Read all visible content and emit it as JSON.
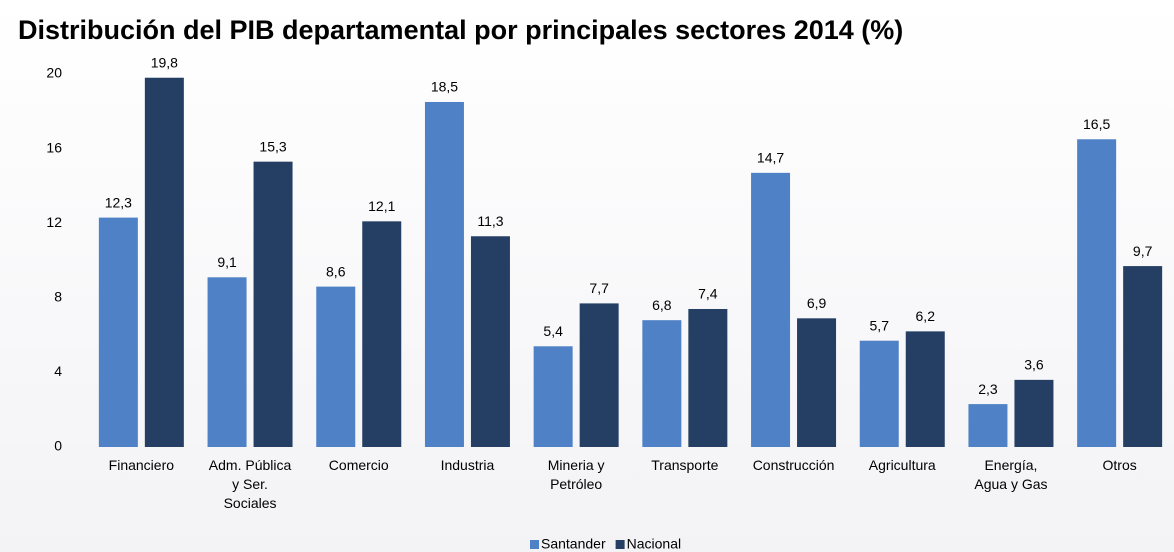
{
  "chart_data": {
    "type": "bar",
    "title": "Distribución del PIB departamental por principales sectores 2014 (%)",
    "categories": [
      "Financiero",
      "Adm. Pública y Ser. Sociales",
      "Comercio",
      "Industria",
      "Mineria y Petróleo",
      "Transporte",
      "Construcción",
      "Agricultura",
      "Energía, Agua y Gas",
      "Otros"
    ],
    "series": [
      {
        "name": "Santander",
        "color": "#4f81c7",
        "values": [
          12.3,
          9.1,
          8.6,
          18.5,
          5.4,
          6.8,
          14.7,
          5.7,
          2.3,
          16.5
        ],
        "value_labels": [
          "12,3",
          "9,1",
          "8,6",
          "18,5",
          "5,4",
          "6,8",
          "14,7",
          "5,7",
          "2,3",
          "16,5"
        ]
      },
      {
        "name": "Nacional",
        "color": "#243f63",
        "values": [
          19.8,
          15.3,
          12.1,
          11.3,
          7.7,
          7.4,
          6.9,
          6.2,
          3.6,
          9.7
        ],
        "value_labels": [
          "19,8",
          "15,3",
          "12,1",
          "11,3",
          "7,7",
          "7,4",
          "6,9",
          "6,2",
          "3,6",
          "9,7"
        ]
      }
    ],
    "ylim": [
      0,
      20
    ],
    "yticks": [
      0,
      4,
      8,
      12,
      16,
      20
    ],
    "grid": false,
    "legend": "bottom"
  }
}
